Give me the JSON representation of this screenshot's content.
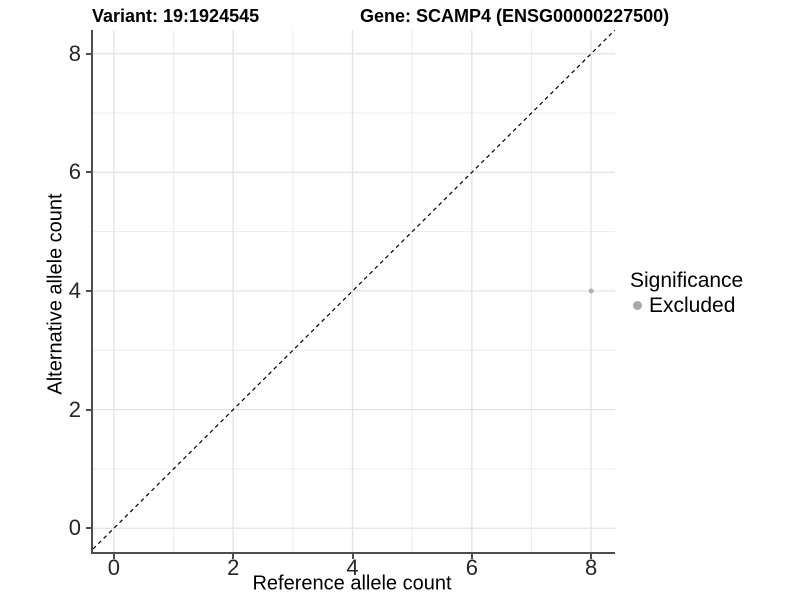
{
  "chart_data": {
    "type": "scatter",
    "title_variant": "Variant: 19:1924545",
    "title_gene": "Gene: SCAMP4 (ENSG00000227500)",
    "xlabel": "Reference allele count",
    "ylabel": "Alternative allele count",
    "xlim": [
      -0.35,
      8.4
    ],
    "ylim": [
      -0.4,
      8.4
    ],
    "x_ticks": [
      0,
      2,
      4,
      6,
      8
    ],
    "y_ticks": [
      0,
      2,
      4,
      6,
      8
    ],
    "x_minor_gridlines": [
      1,
      3,
      5,
      7
    ],
    "y_minor_gridlines": [
      1,
      3,
      5,
      7
    ],
    "grid": true,
    "panel_background": "#ffffff",
    "major_gridline_color": "#e3e3e3",
    "minor_gridline_color": "#ededed",
    "axis_line_color": "#4d4d4d",
    "series": [
      {
        "name": "Excluded",
        "color": "#b0b0b0",
        "points": [
          {
            "x": 8,
            "y": 4
          }
        ]
      }
    ],
    "reference_line": {
      "kind": "identity",
      "slope": 1,
      "intercept": 0,
      "style": "dashed",
      "color": "#000000"
    },
    "legend": {
      "title": "Significance",
      "position": "right",
      "items": [
        {
          "label": "Excluded",
          "color": "#a9a9a9"
        }
      ]
    }
  }
}
